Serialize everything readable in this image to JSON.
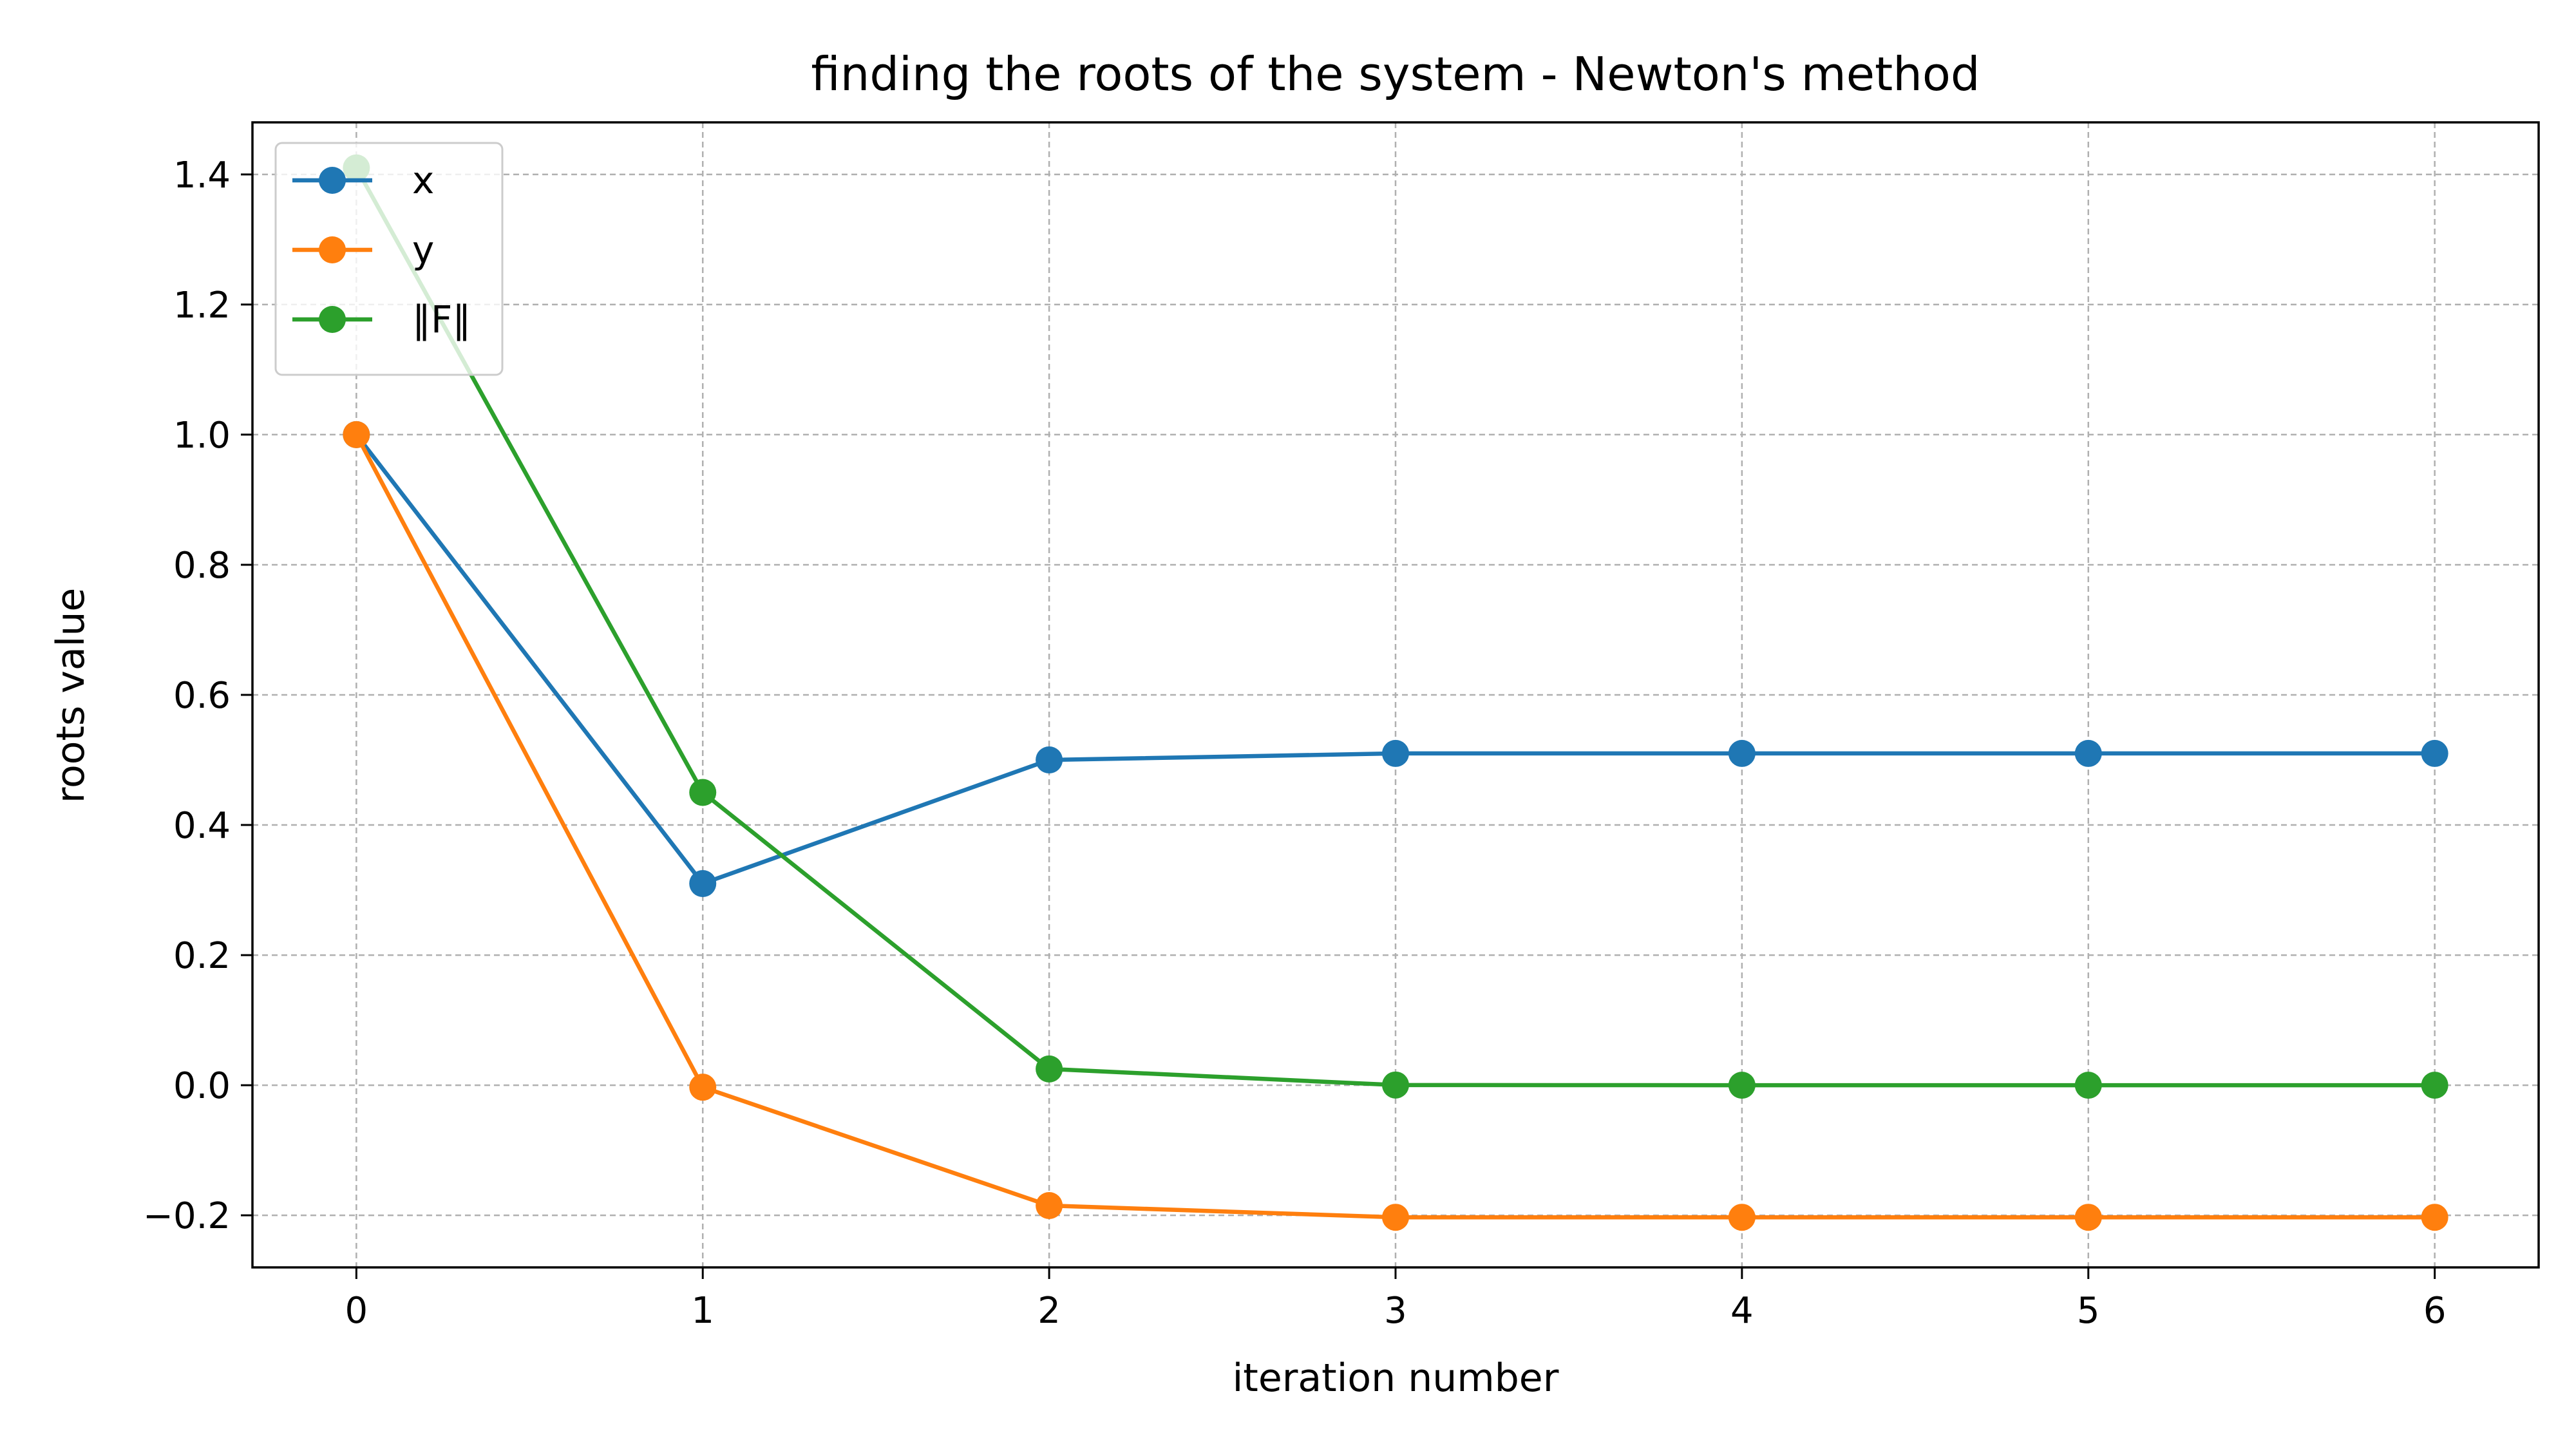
{
  "chart_data": {
    "type": "line",
    "title": "finding the roots of the system - Newton's method",
    "xlabel": "iteration number",
    "ylabel": "roots value",
    "x": [
      0,
      1,
      2,
      3,
      4,
      5,
      6
    ],
    "xlim": [
      -0.3,
      6.3
    ],
    "ylim": [
      -0.28,
      1.48
    ],
    "xticks": [
      0,
      1,
      2,
      3,
      4,
      5,
      6
    ],
    "xtick_labels": [
      "0",
      "1",
      "2",
      "3",
      "4",
      "5",
      "6"
    ],
    "yticks": [
      -0.2,
      0.0,
      0.2,
      0.4,
      0.6,
      0.8,
      1.0,
      1.2,
      1.4
    ],
    "ytick_labels": [
      "−0.2",
      "0.0",
      "0.2",
      "0.4",
      "0.6",
      "0.8",
      "1.0",
      "1.2",
      "1.4"
    ],
    "grid": true,
    "legend_position": "top-left",
    "series": [
      {
        "name": "x",
        "color": "#1f77b4",
        "values": [
          1.0,
          0.31,
          0.5,
          0.51,
          0.51,
          0.51,
          0.51
        ]
      },
      {
        "name": "y",
        "color": "#ff7f0e",
        "values": [
          1.0,
          -0.003,
          -0.185,
          -0.203,
          -0.203,
          -0.203,
          -0.203
        ]
      },
      {
        "name": "‖F‖",
        "color": "#2ca02c",
        "values": [
          1.41,
          0.45,
          0.025,
          0.0003,
          0.0,
          0.0,
          0.0
        ]
      }
    ]
  }
}
